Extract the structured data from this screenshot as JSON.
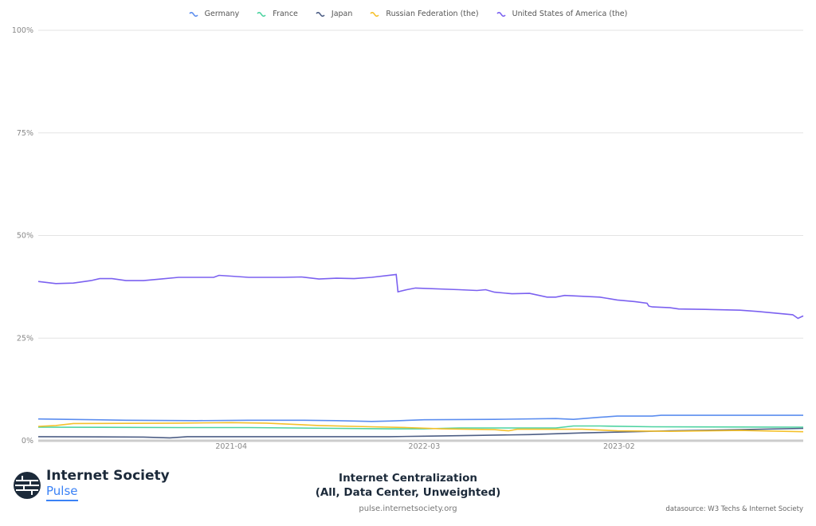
{
  "chart_data": {
    "type": "line",
    "title_line1": "Internet Centralization",
    "title_line2": "(All, Data Center, Unweighted)",
    "xlabel": "",
    "ylabel": "",
    "x_unit": "months since 2020-05",
    "xlim": [
      0,
      43.6
    ],
    "ylim": [
      0,
      100
    ],
    "yticks": [
      {
        "v": 0,
        "label": "0%"
      },
      {
        "v": 25,
        "label": "25%"
      },
      {
        "v": 50,
        "label": "50%"
      },
      {
        "v": 75,
        "label": "75%"
      },
      {
        "v": 100,
        "label": "100%"
      }
    ],
    "xticks": [
      {
        "v": 11,
        "label": "2021-04"
      },
      {
        "v": 22,
        "label": "2022-03"
      },
      {
        "v": 33.1,
        "label": "2023-02"
      }
    ],
    "grid": true,
    "legend_position": "top-center",
    "series": [
      {
        "name": "Germany",
        "color": "#5b8def",
        "points": [
          [
            0,
            5.3
          ],
          [
            5,
            5.0
          ],
          [
            9,
            4.9
          ],
          [
            12,
            5.0
          ],
          [
            15,
            5.0
          ],
          [
            17,
            4.9
          ],
          [
            19,
            4.7
          ],
          [
            20,
            4.8
          ],
          [
            22,
            5.1
          ],
          [
            26,
            5.2
          ],
          [
            29.5,
            5.4
          ],
          [
            30.5,
            5.2
          ],
          [
            32,
            5.7
          ],
          [
            33,
            6.0
          ],
          [
            35,
            6.0
          ],
          [
            35.5,
            6.2
          ],
          [
            43.6,
            6.2
          ]
        ]
      },
      {
        "name": "France",
        "color": "#4cd3a0",
        "points": [
          [
            0,
            3.3
          ],
          [
            8,
            3.2
          ],
          [
            12,
            3.2
          ],
          [
            17,
            3.0
          ],
          [
            20,
            2.9
          ],
          [
            22,
            2.9
          ],
          [
            24,
            3.1
          ],
          [
            29.5,
            3.1
          ],
          [
            30.5,
            3.6
          ],
          [
            32,
            3.6
          ],
          [
            35,
            3.4
          ],
          [
            43.6,
            3.3
          ]
        ]
      },
      {
        "name": "Japan",
        "color": "#4d5e85",
        "points": [
          [
            0,
            1.0
          ],
          [
            6,
            0.9
          ],
          [
            7.5,
            0.7
          ],
          [
            8.5,
            1.0
          ],
          [
            15,
            1.0
          ],
          [
            20,
            1.0
          ],
          [
            22,
            1.1
          ],
          [
            25,
            1.3
          ],
          [
            28,
            1.5
          ],
          [
            31,
            1.9
          ],
          [
            33,
            2.1
          ],
          [
            36,
            2.4
          ],
          [
            40,
            2.7
          ],
          [
            43.6,
            3.0
          ]
        ]
      },
      {
        "name": "Russian Federation (the)",
        "color": "#f5c02a",
        "points": [
          [
            0,
            3.5
          ],
          [
            1,
            3.7
          ],
          [
            2,
            4.2
          ],
          [
            8,
            4.3
          ],
          [
            11,
            4.4
          ],
          [
            13,
            4.3
          ],
          [
            16,
            3.7
          ],
          [
            19,
            3.4
          ],
          [
            21,
            3.2
          ],
          [
            23,
            2.9
          ],
          [
            26,
            2.7
          ],
          [
            26.8,
            2.4
          ],
          [
            27.3,
            2.8
          ],
          [
            31,
            2.8
          ],
          [
            33,
            2.4
          ],
          [
            36,
            2.3
          ],
          [
            40,
            2.5
          ],
          [
            43.6,
            2.2
          ]
        ]
      },
      {
        "name": "United States of America (the)",
        "color": "#7b61f0",
        "points": [
          [
            0,
            38.8
          ],
          [
            1,
            38.3
          ],
          [
            2,
            38.4
          ],
          [
            3,
            39.0
          ],
          [
            3.5,
            39.5
          ],
          [
            4.2,
            39.5
          ],
          [
            5,
            39.0
          ],
          [
            6,
            39.0
          ],
          [
            7,
            39.4
          ],
          [
            8,
            39.8
          ],
          [
            10,
            39.8
          ],
          [
            10.3,
            40.3
          ],
          [
            11,
            40.1
          ],
          [
            12,
            39.8
          ],
          [
            14,
            39.8
          ],
          [
            15,
            39.9
          ],
          [
            16,
            39.4
          ],
          [
            17,
            39.6
          ],
          [
            18,
            39.5
          ],
          [
            19,
            39.8
          ],
          [
            20.4,
            40.5
          ],
          [
            20.5,
            36.3
          ],
          [
            21,
            36.8
          ],
          [
            21.5,
            37.2
          ],
          [
            24,
            36.8
          ],
          [
            25,
            36.6
          ],
          [
            25.5,
            36.8
          ],
          [
            26,
            36.2
          ],
          [
            27,
            35.8
          ],
          [
            28,
            35.9
          ],
          [
            29,
            35.0
          ],
          [
            29.5,
            35.0
          ],
          [
            30,
            35.4
          ],
          [
            32,
            35.0
          ],
          [
            33,
            34.3
          ],
          [
            34,
            33.9
          ],
          [
            34.7,
            33.5
          ],
          [
            34.8,
            32.8
          ],
          [
            35,
            32.6
          ],
          [
            36,
            32.4
          ],
          [
            36.5,
            32.1
          ],
          [
            38,
            32.0
          ],
          [
            40,
            31.8
          ],
          [
            41,
            31.5
          ],
          [
            43,
            30.7
          ],
          [
            43.3,
            29.8
          ],
          [
            43.6,
            30.4
          ]
        ]
      }
    ]
  },
  "footer": {
    "brand_name": "Internet Society",
    "brand_product": "Pulse",
    "url": "pulse.internetsociety.org",
    "datasource": "datasource: W3 Techs & Internet Society"
  }
}
